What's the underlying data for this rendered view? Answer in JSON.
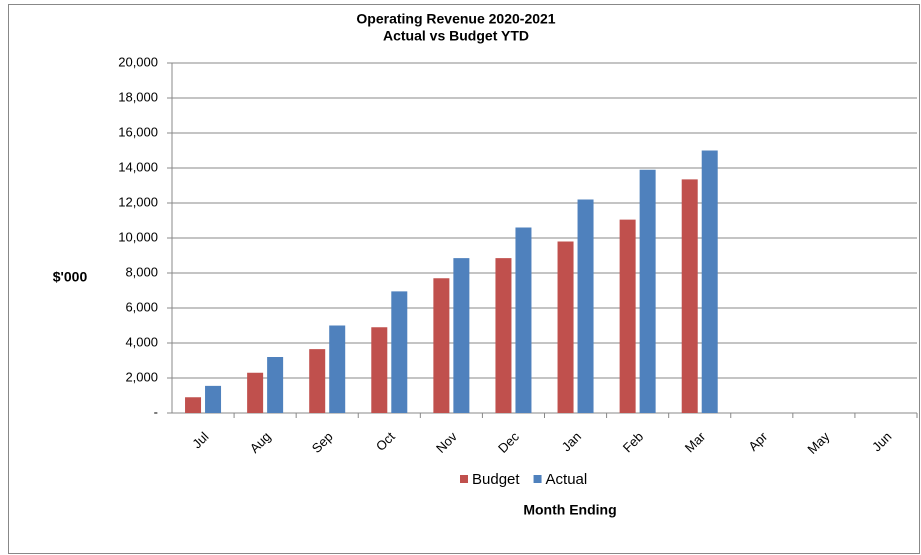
{
  "chart_data": {
    "type": "bar",
    "title": "Operating Revenue 2020-2021",
    "subtitle": "Actual vs Budget YTD",
    "ylabel": "$'000",
    "xlabel": "Month Ending",
    "categories": [
      "Jul",
      "Aug",
      "Sep",
      "Oct",
      "Nov",
      "Dec",
      "Jan",
      "Feb",
      "Mar",
      "Apr",
      "May",
      "Jun"
    ],
    "series": [
      {
        "name": "Budget",
        "color": "#c0504d",
        "values": [
          900,
          2300,
          3650,
          4900,
          7700,
          8850,
          9800,
          11050,
          13350,
          null,
          null,
          null
        ]
      },
      {
        "name": "Actual",
        "color": "#4f81bd",
        "values": [
          1550,
          3200,
          5000,
          6950,
          8850,
          10600,
          12200,
          13900,
          15000,
          null,
          null,
          null
        ]
      }
    ],
    "ylim": [
      0,
      20000
    ],
    "yticks": [
      {
        "value": 0,
        "label": "-"
      },
      {
        "value": 2000,
        "label": "2,000"
      },
      {
        "value": 4000,
        "label": "4,000"
      },
      {
        "value": 6000,
        "label": "6,000"
      },
      {
        "value": 8000,
        "label": "8,000"
      },
      {
        "value": 10000,
        "label": "10,000"
      },
      {
        "value": 12000,
        "label": "12,000"
      },
      {
        "value": 14000,
        "label": "14,000"
      },
      {
        "value": 16000,
        "label": "16,000"
      },
      {
        "value": 18000,
        "label": "18,000"
      },
      {
        "value": 20000,
        "label": "20,000"
      }
    ],
    "grid": true,
    "legend": "bottom"
  }
}
